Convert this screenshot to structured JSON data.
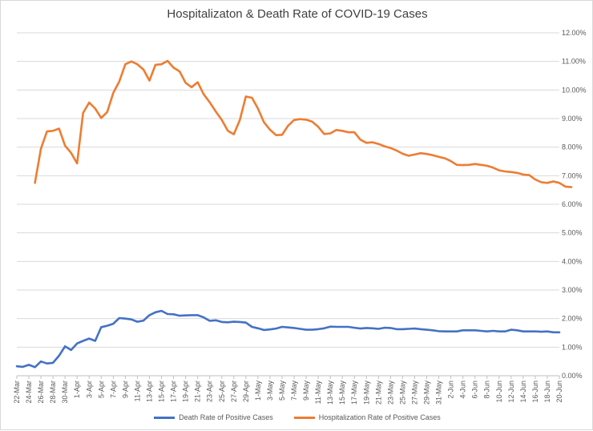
{
  "chart_data": {
    "type": "line",
    "title": "Hospitalizaton & Death Rate of COVID-19 Cases",
    "xlabel": "",
    "ylabel": "",
    "ylim": [
      0,
      12
    ],
    "y_unit": "%",
    "grid": true,
    "legend_position": "bottom",
    "x_tick_labels": [
      "22-Mar",
      "24-Mar",
      "26-Mar",
      "28-Mar",
      "30-Mar",
      "1-Apr",
      "3-Apr",
      "5-Apr",
      "7-Apr",
      "9-Apr",
      "11-Apr",
      "13-Apr",
      "15-Apr",
      "17-Apr",
      "19-Apr",
      "21-Apr",
      "23-Apr",
      "25-Apr",
      "27-Apr",
      "29-Apr",
      "1-May",
      "3-May",
      "5-May",
      "7-May",
      "9-May",
      "11-May",
      "13-May",
      "15-May",
      "17-May",
      "19-May",
      "21-May",
      "23-May",
      "25-May",
      "27-May",
      "29-May",
      "31-May",
      "2-Jun",
      "4-Jun",
      "6-Jun",
      "8-Jun",
      "10-Jun",
      "12-Jun",
      "14-Jun",
      "16-Jun",
      "18-Jun",
      "20-Jun"
    ],
    "y_tick_labels": [
      "0.00%",
      "1.00%",
      "2.00%",
      "3.00%",
      "4.00%",
      "5.00%",
      "6.00%",
      "7.00%",
      "8.00%",
      "9.00%",
      "10.00%",
      "11.00%",
      "12.00%"
    ],
    "series": [
      {
        "name": "Death Rate of Positive Cases",
        "color": "#4472c4",
        "start_index": 0,
        "values": [
          0.33,
          0.31,
          0.38,
          0.3,
          0.5,
          0.43,
          0.45,
          0.7,
          1.03,
          0.9,
          1.13,
          1.22,
          1.3,
          1.22,
          1.7,
          1.75,
          1.82,
          2.02,
          2.0,
          1.97,
          1.89,
          1.93,
          2.12,
          2.22,
          2.27,
          2.16,
          2.15,
          2.1,
          2.11,
          2.12,
          2.12,
          2.04,
          1.92,
          1.94,
          1.88,
          1.87,
          1.89,
          1.88,
          1.86,
          1.71,
          1.66,
          1.6,
          1.62,
          1.65,
          1.71,
          1.69,
          1.67,
          1.64,
          1.61,
          1.61,
          1.63,
          1.66,
          1.72,
          1.71,
          1.71,
          1.71,
          1.68,
          1.65,
          1.67,
          1.66,
          1.64,
          1.68,
          1.67,
          1.63,
          1.63,
          1.64,
          1.65,
          1.63,
          1.61,
          1.59,
          1.56,
          1.55,
          1.55,
          1.55,
          1.59,
          1.59,
          1.59,
          1.57,
          1.55,
          1.57,
          1.55,
          1.55,
          1.61,
          1.59,
          1.55,
          1.55,
          1.55,
          1.54,
          1.55,
          1.52,
          1.52
        ]
      },
      {
        "name": "Hospitalization Rate of Positive Cases",
        "color": "#ed7d31",
        "start_index": 3,
        "values": [
          6.75,
          7.95,
          8.55,
          8.57,
          8.65,
          8.05,
          7.8,
          7.43,
          9.2,
          9.56,
          9.35,
          9.02,
          9.23,
          9.9,
          10.3,
          10.9,
          11.0,
          10.9,
          10.72,
          10.33,
          10.88,
          10.9,
          11.02,
          10.78,
          10.65,
          10.25,
          10.1,
          10.27,
          9.85,
          9.57,
          9.25,
          8.95,
          8.57,
          8.45,
          8.95,
          9.77,
          9.73,
          9.35,
          8.87,
          8.61,
          8.42,
          8.43,
          8.75,
          8.95,
          8.98,
          8.96,
          8.89,
          8.71,
          8.46,
          8.48,
          8.6,
          8.57,
          8.52,
          8.52,
          8.26,
          8.15,
          8.17,
          8.11,
          8.03,
          7.97,
          7.88,
          7.77,
          7.7,
          7.74,
          7.79,
          7.76,
          7.72,
          7.66,
          7.61,
          7.51,
          7.38,
          7.37,
          7.38,
          7.41,
          7.38,
          7.35,
          7.28,
          7.19,
          7.15,
          7.13,
          7.1,
          7.04,
          7.02,
          6.87,
          6.77,
          6.75,
          6.8,
          6.75,
          6.62,
          6.6
        ]
      }
    ]
  }
}
